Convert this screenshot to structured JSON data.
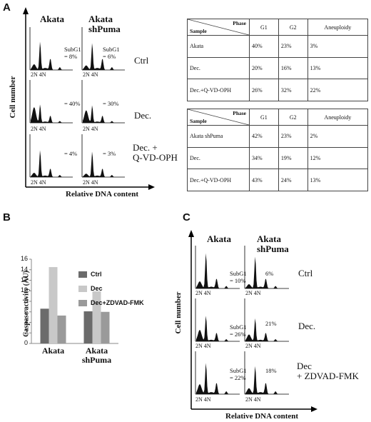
{
  "panelA": {
    "letter": "A",
    "columns": [
      "Akata",
      "Akata\nshPuma"
    ],
    "rows": [
      {
        "label": "Ctrl",
        "subg1_akata": "SubG1\n= 8%",
        "subg1_shpuma": "SubG1\n= 6%"
      },
      {
        "label": "Dec.",
        "subg1_akata": "= 40%",
        "subg1_shpuma": "= 30%"
      },
      {
        "label": "Dec. +\nQ-VD-OPH",
        "subg1_akata": "= 4%",
        "subg1_shpuma": "= 3%"
      }
    ],
    "tick_label": "2N 4N",
    "ylabel": "Cell number",
    "xlabel": "Relative DNA content",
    "table1": {
      "phase_header": "Phase",
      "sample_header": "Sample",
      "cols": [
        "G1",
        "G2",
        "Aneuploidy"
      ],
      "rows": [
        [
          "Akata",
          "40%",
          "23%",
          "3%"
        ],
        [
          "Dec.",
          "20%",
          "16%",
          "13%"
        ],
        [
          "Dec.+Q-VD-OPH",
          "26%",
          "32%",
          "22%"
        ]
      ]
    },
    "table2": {
      "phase_header": "Phase",
      "sample_header": "Sample",
      "cols": [
        "G1",
        "G2",
        "Aneuploidy"
      ],
      "rows": [
        [
          "Akata shPuma",
          "42%",
          "23%",
          "2%"
        ],
        [
          "Dec.",
          "34%",
          "19%",
          "12%"
        ],
        [
          "Dec.+Q-VD-OPH",
          "43%",
          "24%",
          "13%"
        ]
      ]
    }
  },
  "panelB": {
    "letter": "B",
    "chart_data": {
      "type": "bar",
      "categories": [
        "Akata",
        "Akata\nshPuma"
      ],
      "series": [
        {
          "name": "Ctrl",
          "values": [
            6.6,
            6.1
          ],
          "color": "#6b6b6b"
        },
        {
          "name": "Dec",
          "values": [
            14.5,
            9.9
          ],
          "color": "#c8c8c8"
        },
        {
          "name": "Dec+ZDVAD-FMK",
          "values": [
            5.3,
            6.0
          ],
          "color": "#9a9a9a"
        }
      ],
      "ylabel": "Caspase activity (AU)",
      "ylim": [
        0,
        16
      ],
      "yticks": [
        "0",
        "2",
        "4",
        "6",
        "8",
        "10",
        "12",
        "14",
        "16"
      ],
      "legend": "top-right"
    }
  },
  "panelC": {
    "letter": "C",
    "columns": [
      "Akata",
      "Akata\nshPuma"
    ],
    "rows": [
      {
        "label": "Ctrl",
        "subg1_akata": "SubG1\n= 10%",
        "subg1_shpuma": "6%"
      },
      {
        "label": "Dec.",
        "subg1_akata": "SubG1\n= 26%",
        "subg1_shpuma": "21%"
      },
      {
        "label": "Dec\n+ ZDVAD-FMK",
        "subg1_akata": "SubG1\n= 22%",
        "subg1_shpuma": "18%"
      }
    ],
    "tick_label": "2N 4N",
    "ylabel": "Cell number",
    "xlabel": "Relative DNA content"
  }
}
